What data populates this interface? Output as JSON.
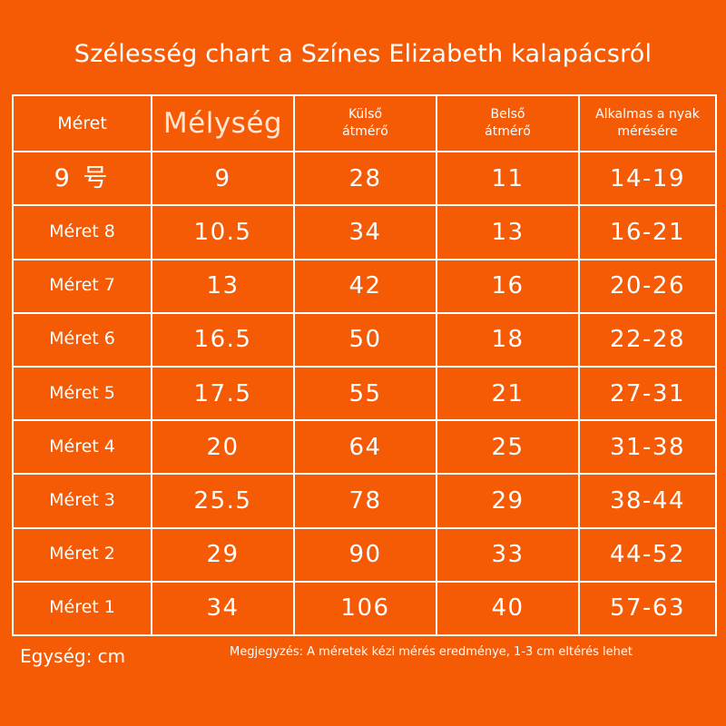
{
  "title": "Szélesség chart a Színes Elizabeth kalapácsról",
  "table": {
    "headers": {
      "size": "Méret",
      "depth": "Mélység",
      "outer": "Külső átmérő",
      "inner": "Belső átmérő",
      "neck": "Alkalmas a nyak mérésére"
    },
    "rows": [
      {
        "size": "9 号",
        "depth": "9",
        "outer": "28",
        "inner": "11",
        "neck": "14-19"
      },
      {
        "size": "Méret 8",
        "depth": "10.5",
        "outer": "34",
        "inner": "13",
        "neck": "16-21"
      },
      {
        "size": "Méret 7",
        "depth": "13",
        "outer": "42",
        "inner": "16",
        "neck": "20-26"
      },
      {
        "size": "Méret 6",
        "depth": "16.5",
        "outer": "50",
        "inner": "18",
        "neck": "22-28"
      },
      {
        "size": "Méret 5",
        "depth": "17.5",
        "outer": "55",
        "inner": "21",
        "neck": "27-31"
      },
      {
        "size": "Méret 4",
        "depth": "20",
        "outer": "64",
        "inner": "25",
        "neck": "31-38"
      },
      {
        "size": "Méret 3",
        "depth": "25.5",
        "outer": "78",
        "inner": "29",
        "neck": "38-44"
      },
      {
        "size": "Méret 2",
        "depth": "29",
        "outer": "90",
        "inner": "33",
        "neck": "44-52"
      },
      {
        "size": "Méret 1",
        "depth": "34",
        "outer": "106",
        "inner": "40",
        "neck": "57-63"
      }
    ]
  },
  "footer": {
    "unit": "Egység: cm",
    "note": "Megjegyzés: A méretek kézi mérés eredménye, 1-3 cm eltérés lehet"
  },
  "colors": {
    "background": "#f55a05",
    "text": "#ffffff",
    "grid": "#ffffff"
  }
}
